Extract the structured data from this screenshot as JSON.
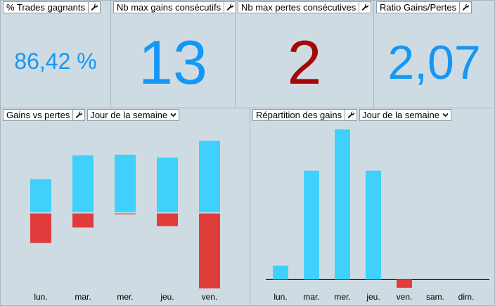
{
  "kpis": [
    {
      "title": "% Trades gagnants",
      "value": "86,42 %",
      "color": "#1597f6"
    },
    {
      "title": "Nb max gains consécutifs",
      "value": "13",
      "color": "#1597f6"
    },
    {
      "title": "Nb max pertes consécutives",
      "value": "2",
      "color": "#a50808"
    },
    {
      "title": "Ratio Gains/Pertes",
      "value": "2,07",
      "color": "#1597f6"
    }
  ],
  "panel_gains_vs_pertes": {
    "title": "Gains vs pertes",
    "dropdown_value": "Jour de la semaine"
  },
  "panel_repartition": {
    "title": "Répartition des gains",
    "dropdown_value": "Jour de la semaine"
  },
  "colors": {
    "gain": "#3fd0fc",
    "loss": "#e03c3c",
    "background": "#cfdbe2"
  },
  "chart_data": [
    {
      "type": "bar",
      "stacked": "diverging",
      "categories": [
        "lun.",
        "mar.",
        "mer.",
        "jeu.",
        "ven."
      ],
      "series": [
        {
          "values": [
            48,
            82,
            83,
            79,
            103
          ]
        },
        {
          "values": [
            -43,
            -21,
            -2,
            -19,
            -108
          ]
        }
      ],
      "ylim": [
        -110,
        105
      ],
      "grid": false
    },
    {
      "type": "bar",
      "categories": [
        "lun.",
        "mar.",
        "mer.",
        "jeu.",
        "ven.",
        "sam.",
        "dim."
      ],
      "values": [
        20,
        158,
        218,
        158,
        -12,
        0,
        0
      ],
      "ylim": [
        -15,
        220
      ],
      "grid": false
    }
  ]
}
